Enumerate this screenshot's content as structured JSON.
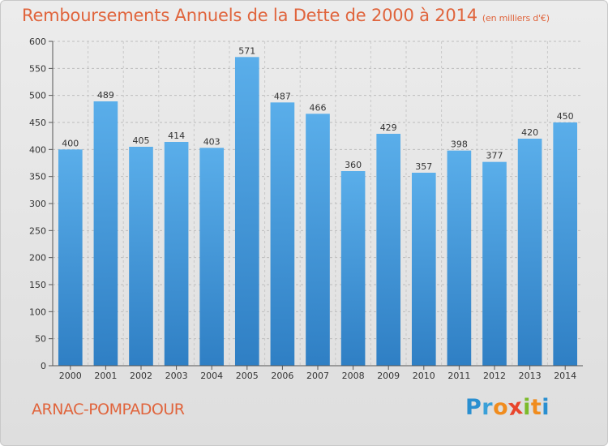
{
  "chart_data": {
    "type": "bar",
    "title": "Remboursements Annuels de la Dette de 2000 à 2014",
    "subtitle": "(en milliers d'€)",
    "categories": [
      "2000",
      "2001",
      "2002",
      "2003",
      "2004",
      "2005",
      "2006",
      "2007",
      "2008",
      "2009",
      "2010",
      "2011",
      "2012",
      "2013",
      "2014"
    ],
    "values": [
      400,
      489,
      405,
      414,
      403,
      571,
      487,
      466,
      360,
      429,
      357,
      398,
      377,
      420,
      450
    ],
    "ylim": [
      0,
      600
    ],
    "yticks": [
      "0",
      "50",
      "100",
      "150",
      "200",
      "250",
      "300",
      "350",
      "400",
      "450",
      "500",
      "550",
      "600"
    ],
    "xlabel": "",
    "ylabel": "",
    "grid": true,
    "bar_color": "#4f9fde"
  },
  "footer": {
    "commune": "ARNAC-POMPADOUR",
    "logo_letters": [
      "P",
      "r",
      "o",
      "x",
      "i",
      "t",
      "i"
    ],
    "logo_colors": [
      "#2a8fd0",
      "#3aa0d8",
      "#f08c1e",
      "#e8452c",
      "#7cbb2a",
      "#f08c1e",
      "#2a8fd0"
    ]
  }
}
